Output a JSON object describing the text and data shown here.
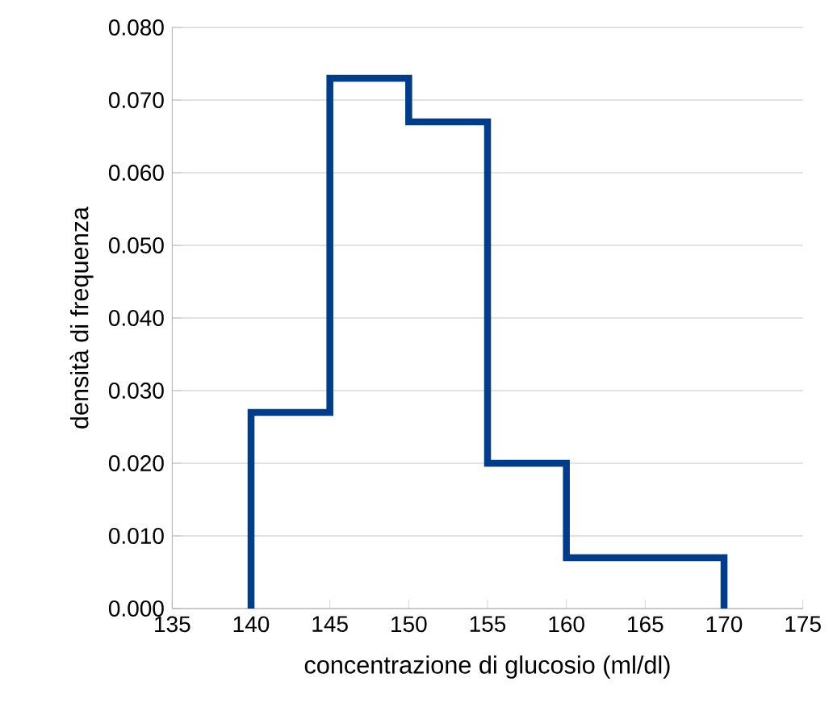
{
  "chart_data": {
    "type": "histogram",
    "xlabel": "concentrazione di glucosio (ml/dl)",
    "ylabel": "densità di frequenza",
    "bins": [
      140,
      145,
      150,
      155,
      160,
      165,
      170
    ],
    "values": [
      0.027,
      0.073,
      0.067,
      0.02,
      0.007,
      0.007
    ],
    "color": "#003c87",
    "grid": "y",
    "xlim": [
      135,
      175
    ],
    "xticks": [
      135,
      140,
      145,
      150,
      155,
      160,
      165,
      170,
      175
    ],
    "ylim": [
      0,
      0.08
    ],
    "yticks": [
      {
        "value": 0,
        "label": "0.000"
      },
      {
        "value": 0.01,
        "label": "0.010"
      },
      {
        "value": 0.02,
        "label": "0.020"
      },
      {
        "value": 0.03,
        "label": "0.030"
      },
      {
        "value": 0.04,
        "label": "0.040"
      },
      {
        "value": 0.05,
        "label": "0.050"
      },
      {
        "value": 0.06,
        "label": "0.060"
      },
      {
        "value": 0.07,
        "label": "0.070"
      },
      {
        "value": 0.08,
        "label": "0.080"
      }
    ]
  }
}
